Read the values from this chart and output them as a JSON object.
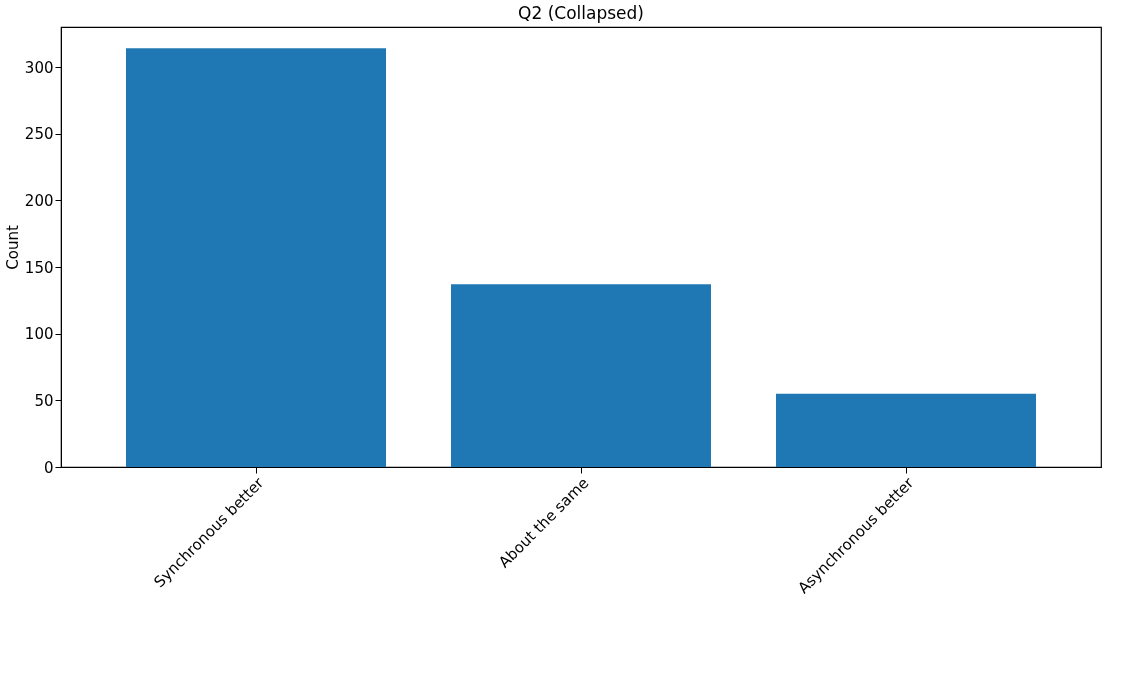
{
  "chart_data": {
    "type": "bar",
    "title": "Q2 (Collapsed)",
    "ylabel": "Count",
    "categories": [
      "Synchronous better",
      "About the same",
      "Asynchronous better"
    ],
    "values": [
      314,
      137,
      55
    ],
    "color": "#1f77b4",
    "ylim": [
      0,
      330
    ],
    "yticks": [
      0,
      50,
      100,
      150,
      200,
      250,
      300
    ],
    "grid": false
  }
}
